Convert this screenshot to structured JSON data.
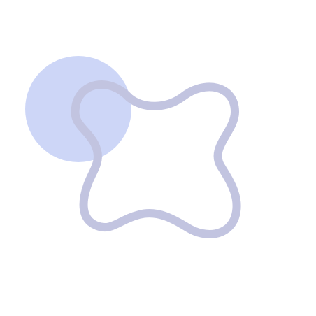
{
  "graphic": {
    "background_color": "#ffffff",
    "circle": {
      "shape": "circle",
      "fill_color": "#cdd6f7"
    },
    "outline_shape": {
      "shape": "rounded four-lobed loop",
      "stroke_color": "#c2c4e0"
    }
  }
}
